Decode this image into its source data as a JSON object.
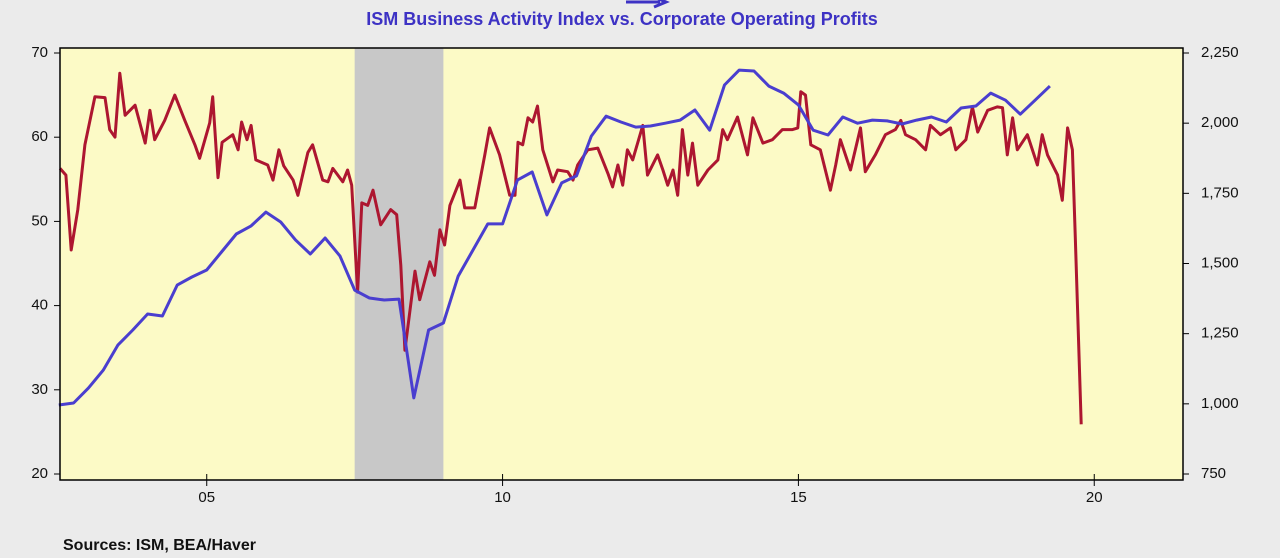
{
  "chart_data": {
    "type": "line",
    "title": "ISM Business Activity Index vs. Corporate Operating Profits",
    "source": "Sources:  ISM, BEA/Haver",
    "xlim": [
      2002.52,
      2021.5
    ],
    "xticks": [
      {
        "value": 2005,
        "label": "05"
      },
      {
        "value": 2010,
        "label": "10"
      },
      {
        "value": 2015,
        "label": "15"
      },
      {
        "value": 2020,
        "label": "20"
      }
    ],
    "ylim": [
      20,
      70
    ],
    "yticks": [
      20,
      30,
      40,
      50,
      60,
      70
    ],
    "y2lim": [
      750,
      2250
    ],
    "y2ticks": [
      {
        "value": 750,
        "label": "750"
      },
      {
        "value": 1000,
        "label": "1,000"
      },
      {
        "value": 1250,
        "label": "1,250"
      },
      {
        "value": 1500,
        "label": "1,500"
      },
      {
        "value": 1750,
        "label": "1,750"
      },
      {
        "value": 2000,
        "label": "2,000"
      },
      {
        "value": 2250,
        "label": "2,250"
      }
    ],
    "shaded": [
      [
        2007.5,
        2009.0
      ]
    ],
    "shade_color": "#c8c8c8",
    "background": "#fcfac6",
    "series": [
      {
        "color": "#ad1630",
        "axis": "y",
        "x": [
          2002.52,
          2002.62,
          2002.71,
          2002.82,
          2002.94,
          2003.11,
          2003.28,
          2003.36,
          2003.45,
          2003.53,
          2003.62,
          2003.79,
          2003.96,
          2004.04,
          2004.12,
          2004.29,
          2004.46,
          2004.63,
          2004.8,
          2004.88,
          2005.05,
          2005.1,
          2005.19,
          2005.26,
          2005.44,
          2005.53,
          2005.59,
          2005.68,
          2005.75,
          2005.83,
          2006.03,
          2006.12,
          2006.22,
          2006.3,
          2006.46,
          2006.54,
          2006.71,
          2006.79,
          2006.96,
          2007.05,
          2007.13,
          2007.3,
          2007.38,
          2007.45,
          2007.55,
          2007.62,
          2007.72,
          2007.81,
          2007.94,
          2008.11,
          2008.21,
          2008.28,
          2008.35,
          2008.52,
          2008.6,
          2008.77,
          2008.85,
          2008.94,
          2009.02,
          2009.11,
          2009.28,
          2009.36,
          2009.53,
          2009.7,
          2009.78,
          2009.95,
          2010.12,
          2010.21,
          2010.26,
          2010.34,
          2010.43,
          2010.51,
          2010.59,
          2010.68,
          2010.85,
          2010.93,
          2011.1,
          2011.19,
          2011.27,
          2011.44,
          2011.61,
          2011.78,
          2011.86,
          2011.95,
          2012.03,
          2012.11,
          2012.2,
          2012.37,
          2012.45,
          2012.62,
          2012.71,
          2012.79,
          2012.88,
          2012.96,
          2013.04,
          2013.13,
          2013.21,
          2013.3,
          2013.47,
          2013.64,
          2013.72,
          2013.8,
          2013.97,
          2014.14,
          2014.23,
          2014.4,
          2014.56,
          2014.73,
          2014.9,
          2014.99,
          2015.04,
          2015.12,
          2015.21,
          2015.37,
          2015.54,
          2015.63,
          2015.71,
          2015.88,
          2016.05,
          2016.13,
          2016.3,
          2016.47,
          2016.64,
          2016.73,
          2016.81,
          2016.98,
          2017.15,
          2017.23,
          2017.4,
          2017.57,
          2017.66,
          2017.83,
          2017.94,
          2018.03,
          2018.2,
          2018.36,
          2018.45,
          2018.53,
          2018.62,
          2018.7,
          2018.87,
          2019.04,
          2019.12,
          2019.21,
          2019.38,
          2019.46,
          2019.55,
          2019.63,
          2019.68,
          2019.78
        ],
        "values": [
          56.3,
          55.5,
          46.6,
          51.4,
          59.1,
          64.8,
          64.7,
          60.9,
          60.0,
          67.6,
          62.6,
          63.8,
          59.3,
          63.2,
          59.7,
          62.0,
          65.0,
          62.0,
          59.1,
          57.5,
          61.7,
          64.8,
          55.2,
          59.4,
          60.3,
          58.5,
          61.8,
          59.7,
          61.4,
          57.3,
          56.7,
          54.9,
          58.5,
          56.6,
          54.9,
          53.1,
          58.2,
          59.1,
          54.9,
          54.7,
          56.3,
          54.7,
          56.1,
          54.3,
          41.6,
          52.2,
          51.9,
          53.7,
          49.6,
          51.4,
          50.8,
          44.8,
          34.7,
          44.1,
          40.7,
          45.2,
          43.6,
          49.0,
          47.2,
          51.9,
          54.9,
          51.6,
          51.6,
          57.9,
          61.1,
          57.9,
          53.1,
          53.1,
          59.4,
          59.1,
          62.3,
          61.8,
          63.7,
          58.5,
          54.7,
          56.1,
          55.9,
          54.9,
          56.7,
          58.5,
          58.7,
          55.7,
          54.1,
          56.7,
          54.3,
          58.5,
          57.3,
          61.4,
          55.5,
          57.9,
          56.1,
          54.3,
          56.1,
          53.1,
          60.9,
          55.5,
          59.3,
          54.3,
          56.1,
          57.3,
          60.9,
          59.7,
          62.4,
          57.9,
          62.3,
          59.3,
          59.7,
          60.9,
          60.9,
          61.1,
          65.4,
          65.0,
          59.1,
          58.5,
          53.7,
          56.7,
          59.7,
          56.1,
          61.1,
          55.9,
          57.9,
          60.3,
          60.9,
          62.0,
          60.3,
          59.7,
          58.5,
          61.4,
          60.3,
          61.1,
          58.5,
          59.7,
          63.6,
          60.6,
          63.2,
          63.6,
          63.5,
          57.9,
          62.3,
          58.5,
          60.3,
          56.7,
          60.3,
          57.9,
          55.5,
          52.5,
          61.1,
          58.5,
          48.1,
          25.9
        ]
      },
      {
        "color": "#4a3ecf",
        "axis": "y2",
        "x": [
          2002.5,
          2002.75,
          2003.0,
          2003.25,
          2003.5,
          2003.75,
          2004.0,
          2004.25,
          2004.5,
          2004.75,
          2005.0,
          2005.25,
          2005.5,
          2005.75,
          2006.0,
          2006.25,
          2006.5,
          2006.75,
          2007.0,
          2007.25,
          2007.5,
          2007.75,
          2008.0,
          2008.25,
          2008.5,
          2008.75,
          2009.0,
          2009.25,
          2009.5,
          2009.75,
          2010.0,
          2010.25,
          2010.5,
          2010.75,
          2011.0,
          2011.25,
          2011.5,
          2011.75,
          2012.0,
          2012.25,
          2012.5,
          2012.75,
          2013.0,
          2013.25,
          2013.5,
          2013.75,
          2014.0,
          2014.25,
          2014.5,
          2014.75,
          2015.0,
          2015.25,
          2015.5,
          2015.75,
          2016.0,
          2016.25,
          2016.5,
          2016.75,
          2017.0,
          2017.25,
          2017.5,
          2017.75,
          2018.0,
          2018.25,
          2018.5,
          2018.75,
          2019.0,
          2019.25
        ],
        "values": [
          996,
          1003,
          1056,
          1120,
          1210,
          1263,
          1320,
          1313,
          1423,
          1452,
          1477,
          1541,
          1605,
          1634,
          1683,
          1648,
          1584,
          1534,
          1591,
          1527,
          1405,
          1377,
          1370,
          1373,
          1021,
          1263,
          1288,
          1455,
          1548,
          1641,
          1641,
          1797,
          1826,
          1673,
          1787,
          1812,
          1954,
          2025,
          2004,
          1986,
          1990,
          2000,
          2011,
          2047,
          1975,
          2136,
          2189,
          2186,
          2132,
          2107,
          2065,
          1975,
          1958,
          2022,
          2000,
          2011,
          2008,
          1997,
          2011,
          2022,
          2004,
          2054,
          2061,
          2107,
          2082,
          2032,
          2082,
          2132
        ]
      }
    ]
  }
}
